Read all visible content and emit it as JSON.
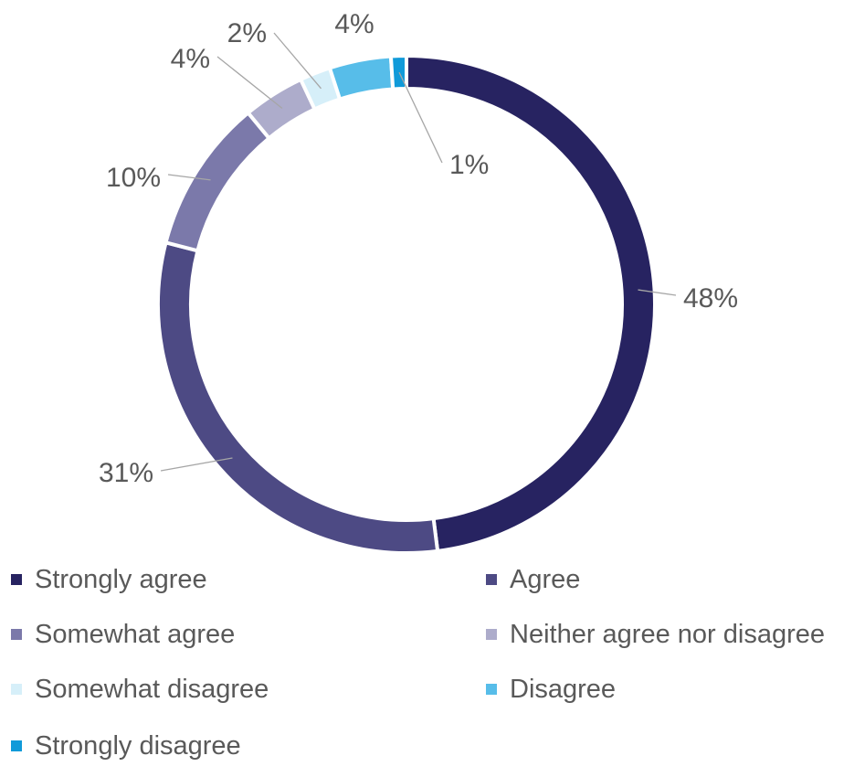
{
  "chart_data": {
    "type": "pie",
    "variant": "donut",
    "categories": [
      "Strongly agree",
      "Agree",
      "Somewhat agree",
      "Neither agree nor disagree",
      "Somewhat disagree",
      "Disagree",
      "Strongly disagree"
    ],
    "values": [
      48,
      31,
      10,
      4,
      2,
      4,
      1
    ],
    "data_labels": [
      "48%",
      "31%",
      "10%",
      "4%",
      "2%",
      "4%",
      "1%"
    ],
    "colors": [
      "#272361",
      "#4d4a84",
      "#7b79aa",
      "#adaccb",
      "#d6eff9",
      "#57bde9",
      "#109ad9"
    ],
    "legend": {
      "position": "bottom",
      "entries": [
        "Strongly agree",
        "Agree",
        "Somewhat agree",
        "Neither agree nor disagree",
        "Somewhat disagree",
        "Disagree",
        "Strongly disagree"
      ]
    },
    "title": ""
  }
}
